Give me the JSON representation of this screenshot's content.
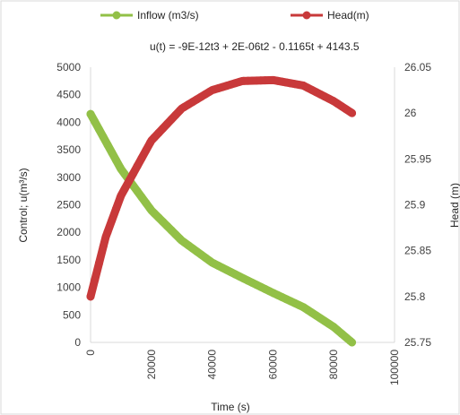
{
  "chart_data": {
    "type": "line",
    "legend_placement": "top",
    "grid": false,
    "annotation": "u(t) = -9E-12t3 + 2E-06t2 - 0.1165t + 4143.5",
    "xlabel": "Time (s)",
    "ylabel_left": "Control; u(m³/s)",
    "ylabel_right": "Head (m)",
    "xlim": [
      0,
      100000
    ],
    "ylim_left": [
      0,
      5000
    ],
    "ylim_right": [
      25.75,
      26.05
    ],
    "x_ticks": [
      "0",
      "20000",
      "40000",
      "60000",
      "80000",
      "100000"
    ],
    "y_left_ticks": [
      "0",
      "500",
      "1000",
      "1500",
      "2000",
      "2500",
      "3000",
      "3500",
      "4000",
      "4500",
      "5000"
    ],
    "y_right_ticks": [
      "25.75",
      "25.8",
      "25.85",
      "25.9",
      "25.95",
      "26",
      "26.05"
    ],
    "series": [
      {
        "name": "Inflow (m3/s)",
        "axis": "left",
        "color": "#92c047",
        "x": [
          0,
          10000,
          20000,
          30000,
          40000,
          50000,
          60000,
          70000,
          80000,
          86000
        ],
        "values": [
          4150,
          3150,
          2400,
          1850,
          1450,
          1170,
          900,
          640,
          280,
          0
        ]
      },
      {
        "name": "Head(m)",
        "axis": "right",
        "color": "#c8393a",
        "x": [
          0,
          5000,
          10000,
          20000,
          30000,
          40000,
          50000,
          60000,
          70000,
          80000,
          86000
        ],
        "values": [
          25.8,
          25.865,
          25.91,
          25.97,
          26.005,
          26.025,
          26.035,
          26.036,
          26.03,
          26.013,
          26.0
        ]
      }
    ]
  }
}
